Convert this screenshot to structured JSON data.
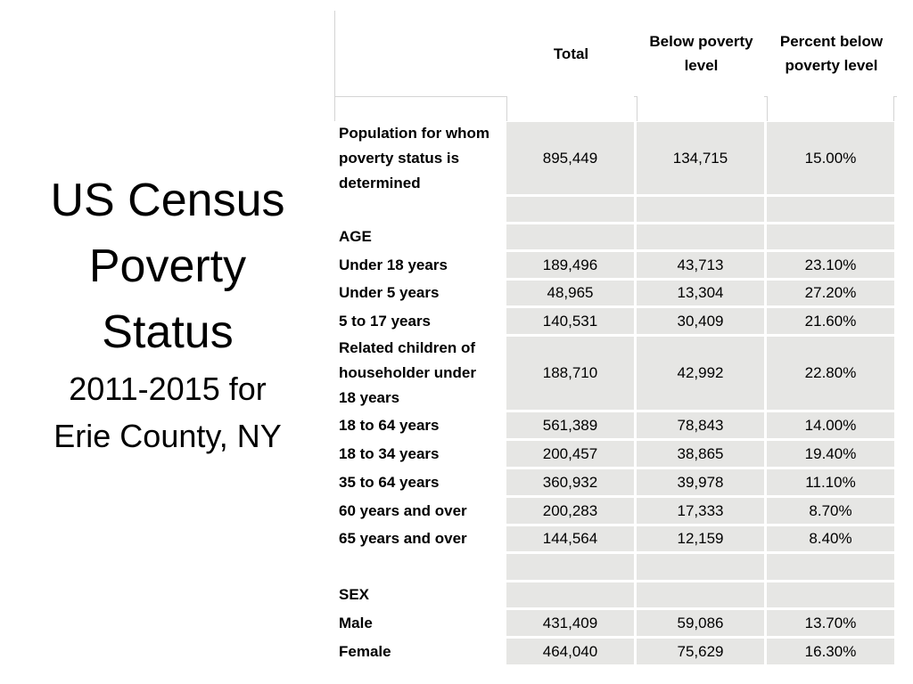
{
  "title": {
    "line1": "US Census",
    "line2": "Poverty",
    "line3": "Status",
    "line4": "2011-2015 for",
    "line5": "Erie County, NY"
  },
  "table": {
    "headers": {
      "total": "Total",
      "below_line1": "Below poverty",
      "below_line2": "level",
      "percent_line1": "Percent below",
      "percent_line2": "poverty level"
    },
    "rows": [
      {
        "label_lines": [
          "Population for whom",
          "poverty status is",
          "determined"
        ],
        "total": "895,449",
        "below": "134,715",
        "percent": "15.00%"
      },
      {
        "label_lines": [
          ""
        ],
        "total": "",
        "below": "",
        "percent": ""
      },
      {
        "label_lines": [
          "AGE"
        ],
        "total": "",
        "below": "",
        "percent": ""
      },
      {
        "label_lines": [
          "Under 18 years"
        ],
        "total": "189,496",
        "below": "43,713",
        "percent": "23.10%"
      },
      {
        "label_lines": [
          "Under 5 years"
        ],
        "total": "48,965",
        "below": "13,304",
        "percent": "27.20%"
      },
      {
        "label_lines": [
          "5 to 17 years"
        ],
        "total": "140,531",
        "below": "30,409",
        "percent": "21.60%"
      },
      {
        "label_lines": [
          "Related children of",
          "householder under",
          "18 years"
        ],
        "total": "188,710",
        "below": "42,992",
        "percent": "22.80%"
      },
      {
        "label_lines": [
          "18 to 64 years"
        ],
        "total": "561,389",
        "below": "78,843",
        "percent": "14.00%"
      },
      {
        "label_lines": [
          "18 to 34 years"
        ],
        "total": "200,457",
        "below": "38,865",
        "percent": "19.40%"
      },
      {
        "label_lines": [
          "35 to 64 years"
        ],
        "total": "360,932",
        "below": "39,978",
        "percent": "11.10%"
      },
      {
        "label_lines": [
          "60 years and over"
        ],
        "total": "200,283",
        "below": "17,333",
        "percent": "8.70%"
      },
      {
        "label_lines": [
          "65 years and over"
        ],
        "total": "144,564",
        "below": "12,159",
        "percent": "8.40%"
      },
      {
        "label_lines": [
          ""
        ],
        "total": "",
        "below": "",
        "percent": ""
      },
      {
        "label_lines": [
          "SEX"
        ],
        "total": "",
        "below": "",
        "percent": ""
      },
      {
        "label_lines": [
          "Male"
        ],
        "total": "431,409",
        "below": "59,086",
        "percent": "13.70%"
      },
      {
        "label_lines": [
          "Female"
        ],
        "total": "464,040",
        "below": "75,629",
        "percent": "16.30%"
      }
    ]
  },
  "colors": {
    "cell_fill": "#e6e6e4",
    "gridline": "#d4d4d4"
  }
}
